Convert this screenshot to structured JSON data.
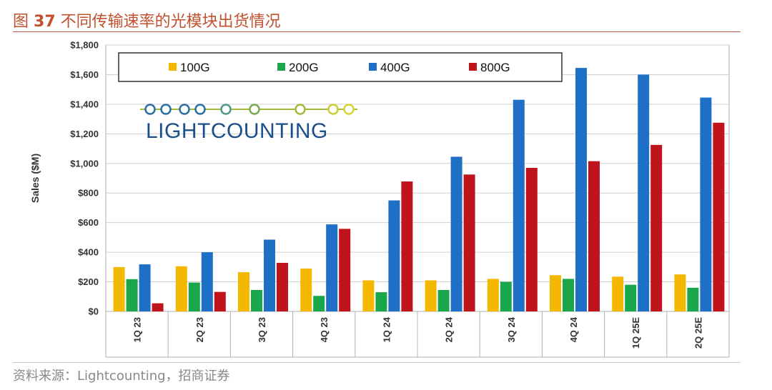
{
  "header": {
    "figure_prefix": "图",
    "figure_number": "37",
    "figure_title": "不同传输速率的光模块出货情况"
  },
  "footer": {
    "source": "资料来源：Lightcounting，招商证券"
  },
  "logo": {
    "text": "LIGHTCOUNTING",
    "text_color": "#1a4f8a",
    "line_color": "#a7b83a",
    "circle_colors": [
      "#2a6fa8",
      "#2a6fa8",
      "#2a6fa8",
      "#2a6fa8",
      "#4f9a8c",
      "#7aa84d",
      "#a7b83a",
      "#c8cf33",
      "#d6d52e"
    ]
  },
  "chart_data": {
    "type": "bar",
    "ylabel": "Sales ($M)",
    "xlabel": "",
    "ylim": [
      0,
      1800
    ],
    "y_ticks": [
      0,
      200,
      400,
      600,
      800,
      1000,
      1200,
      1400,
      1600,
      1800
    ],
    "y_tick_labels": [
      "$0",
      "$200",
      "$400",
      "$600",
      "$800",
      "$1,000",
      "$1,200",
      "$1,400",
      "$1,600",
      "$1,800"
    ],
    "grid": true,
    "legend_position": "top",
    "categories": [
      "1Q 23",
      "2Q 23",
      "3Q 23",
      "4Q 23",
      "1Q 24",
      "2Q 24",
      "3Q 24",
      "4Q 24",
      "1Q 25E",
      "2Q 25E"
    ],
    "series": [
      {
        "name": "100G",
        "color": "#f5b800",
        "values": [
          300,
          305,
          265,
          290,
          210,
          210,
          220,
          245,
          235,
          250
        ]
      },
      {
        "name": "200G",
        "color": "#1aa64a",
        "values": [
          218,
          195,
          145,
          105,
          130,
          145,
          200,
          220,
          180,
          160
        ]
      },
      {
        "name": "400G",
        "color": "#1f6fc6",
        "values": [
          318,
          400,
          485,
          588,
          750,
          1045,
          1430,
          1645,
          1600,
          1445
        ]
      },
      {
        "name": "800G",
        "color": "#c0141c",
        "values": [
          55,
          132,
          328,
          558,
          878,
          925,
          970,
          1015,
          1125,
          1275
        ]
      }
    ]
  }
}
